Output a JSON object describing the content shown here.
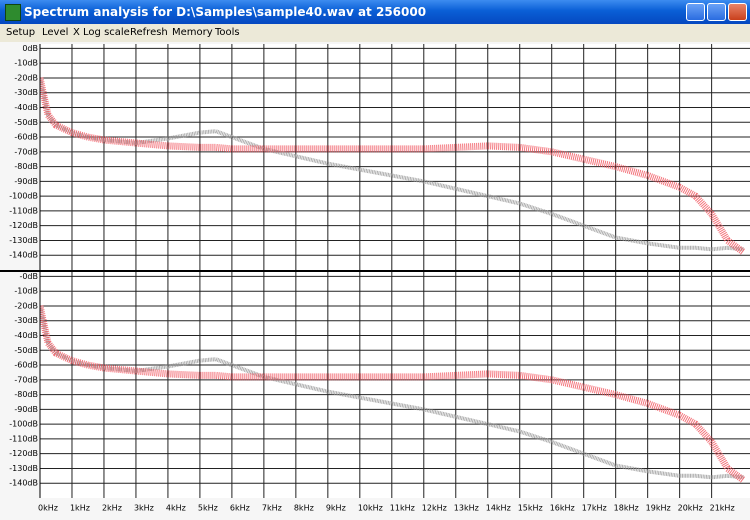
{
  "window": {
    "title": "Spectrum analysis for D:\\Samples\\sample40.wav at 256000"
  },
  "menu": [
    "Setup",
    "Level",
    "X Log scale",
    "Refresh",
    "Memory",
    "Tools"
  ],
  "chart_data": [
    {
      "type": "line",
      "x": [
        0,
        0.25,
        0.5,
        1,
        1.5,
        2,
        3,
        4,
        5,
        5.5,
        6,
        7,
        8,
        9,
        10,
        11,
        12,
        13,
        14,
        15,
        16,
        17,
        18,
        19,
        20,
        20.5,
        21,
        21.5,
        22
      ],
      "xlim": [
        0,
        22.2
      ],
      "ylim": [
        -150,
        3
      ],
      "grid": true,
      "yticks": [
        {
          "value": 0,
          "label": "0dB"
        },
        {
          "value": -10,
          "label": "-10dB"
        },
        {
          "value": -20,
          "label": "-20dB"
        },
        {
          "value": -30,
          "label": "-30dB"
        },
        {
          "value": -40,
          "label": "-40dB"
        },
        {
          "value": -50,
          "label": "-50dB"
        },
        {
          "value": -60,
          "label": "-60dB"
        },
        {
          "value": -70,
          "label": "-70dB"
        },
        {
          "value": -80,
          "label": "-80dB"
        },
        {
          "value": -90,
          "label": "-90dB"
        },
        {
          "value": -100,
          "label": "-100dB"
        },
        {
          "value": -110,
          "label": "-110dB"
        },
        {
          "value": -120,
          "label": "-120dB"
        },
        {
          "value": -130,
          "label": "-130dB"
        },
        {
          "value": -140,
          "label": "-140dB"
        }
      ],
      "series": [
        {
          "color": "#999999",
          "values": [
            -20,
            -45,
            -52,
            -57,
            -60,
            -62,
            -64,
            -61,
            -57,
            -56,
            -60,
            -68,
            -73,
            -78,
            -82,
            -86,
            -90,
            -95,
            -100,
            -105,
            -112,
            -120,
            -128,
            -132,
            -135,
            -135,
            -136,
            -135,
            -136
          ]
        },
        {
          "color": "#f0505a",
          "values": [
            -20,
            -45,
            -52,
            -57,
            -60,
            -62,
            -64,
            -66,
            -67,
            -67,
            -68,
            -68,
            -68,
            -68,
            -68,
            -68,
            -68,
            -67,
            -66,
            -67,
            -70,
            -75,
            -80,
            -86,
            -94,
            -100,
            -112,
            -130,
            -138
          ]
        }
      ]
    },
    {
      "type": "line",
      "x": [
        0,
        0.25,
        0.5,
        1,
        1.5,
        2,
        3,
        4,
        5,
        5.5,
        6,
        7,
        8,
        9,
        10,
        11,
        12,
        13,
        14,
        15,
        16,
        17,
        18,
        19,
        20,
        20.5,
        21,
        21.5,
        22
      ],
      "xlim": [
        0,
        22.2
      ],
      "ylim": [
        -150,
        3
      ],
      "grid": true,
      "xticks": [
        {
          "value": 0,
          "label": "0kHz"
        },
        {
          "value": 1,
          "label": "1kHz"
        },
        {
          "value": 2,
          "label": "2kHz"
        },
        {
          "value": 3,
          "label": "3kHz"
        },
        {
          "value": 4,
          "label": "4kHz"
        },
        {
          "value": 5,
          "label": "5kHz"
        },
        {
          "value": 6,
          "label": "6kHz"
        },
        {
          "value": 7,
          "label": "7kHz"
        },
        {
          "value": 8,
          "label": "8kHz"
        },
        {
          "value": 9,
          "label": "9kHz"
        },
        {
          "value": 10,
          "label": "10kHz"
        },
        {
          "value": 11,
          "label": "11kHz"
        },
        {
          "value": 12,
          "label": "12kHz"
        },
        {
          "value": 13,
          "label": "13kHz"
        },
        {
          "value": 14,
          "label": "14kHz"
        },
        {
          "value": 15,
          "label": "15kHz"
        },
        {
          "value": 16,
          "label": "16kHz"
        },
        {
          "value": 17,
          "label": "17kHz"
        },
        {
          "value": 18,
          "label": "18kHz"
        },
        {
          "value": 19,
          "label": "19kHz"
        },
        {
          "value": 20,
          "label": "20kHz"
        },
        {
          "value": 21,
          "label": "21kHz"
        }
      ],
      "yticks": [
        {
          "value": 0,
          "label": "-0dB"
        },
        {
          "value": -10,
          "label": "-10dB"
        },
        {
          "value": -20,
          "label": "-20dB"
        },
        {
          "value": -30,
          "label": "-30dB"
        },
        {
          "value": -40,
          "label": "-40dB"
        },
        {
          "value": -50,
          "label": "-50dB"
        },
        {
          "value": -60,
          "label": "-60dB"
        },
        {
          "value": -70,
          "label": "-70dB"
        },
        {
          "value": -80,
          "label": "-80dB"
        },
        {
          "value": -90,
          "label": "-90dB"
        },
        {
          "value": -100,
          "label": "-100dB"
        },
        {
          "value": -110,
          "label": "-110dB"
        },
        {
          "value": -120,
          "label": "-120dB"
        },
        {
          "value": -130,
          "label": "-130dB"
        },
        {
          "value": -140,
          "label": "-140dB"
        }
      ],
      "series": [
        {
          "color": "#999999",
          "values": [
            -20,
            -45,
            -52,
            -57,
            -60,
            -62,
            -64,
            -61,
            -57,
            -56,
            -60,
            -68,
            -73,
            -78,
            -82,
            -86,
            -90,
            -95,
            -100,
            -105,
            -112,
            -120,
            -128,
            -132,
            -135,
            -135,
            -136,
            -135,
            -136
          ]
        },
        {
          "color": "#f0505a",
          "values": [
            -20,
            -45,
            -52,
            -57,
            -60,
            -62,
            -64,
            -66,
            -67,
            -67,
            -68,
            -68,
            -68,
            -68,
            -68,
            -68,
            -68,
            -67,
            -66,
            -67,
            -70,
            -75,
            -80,
            -86,
            -94,
            -100,
            -112,
            -130,
            -138
          ]
        }
      ]
    }
  ]
}
